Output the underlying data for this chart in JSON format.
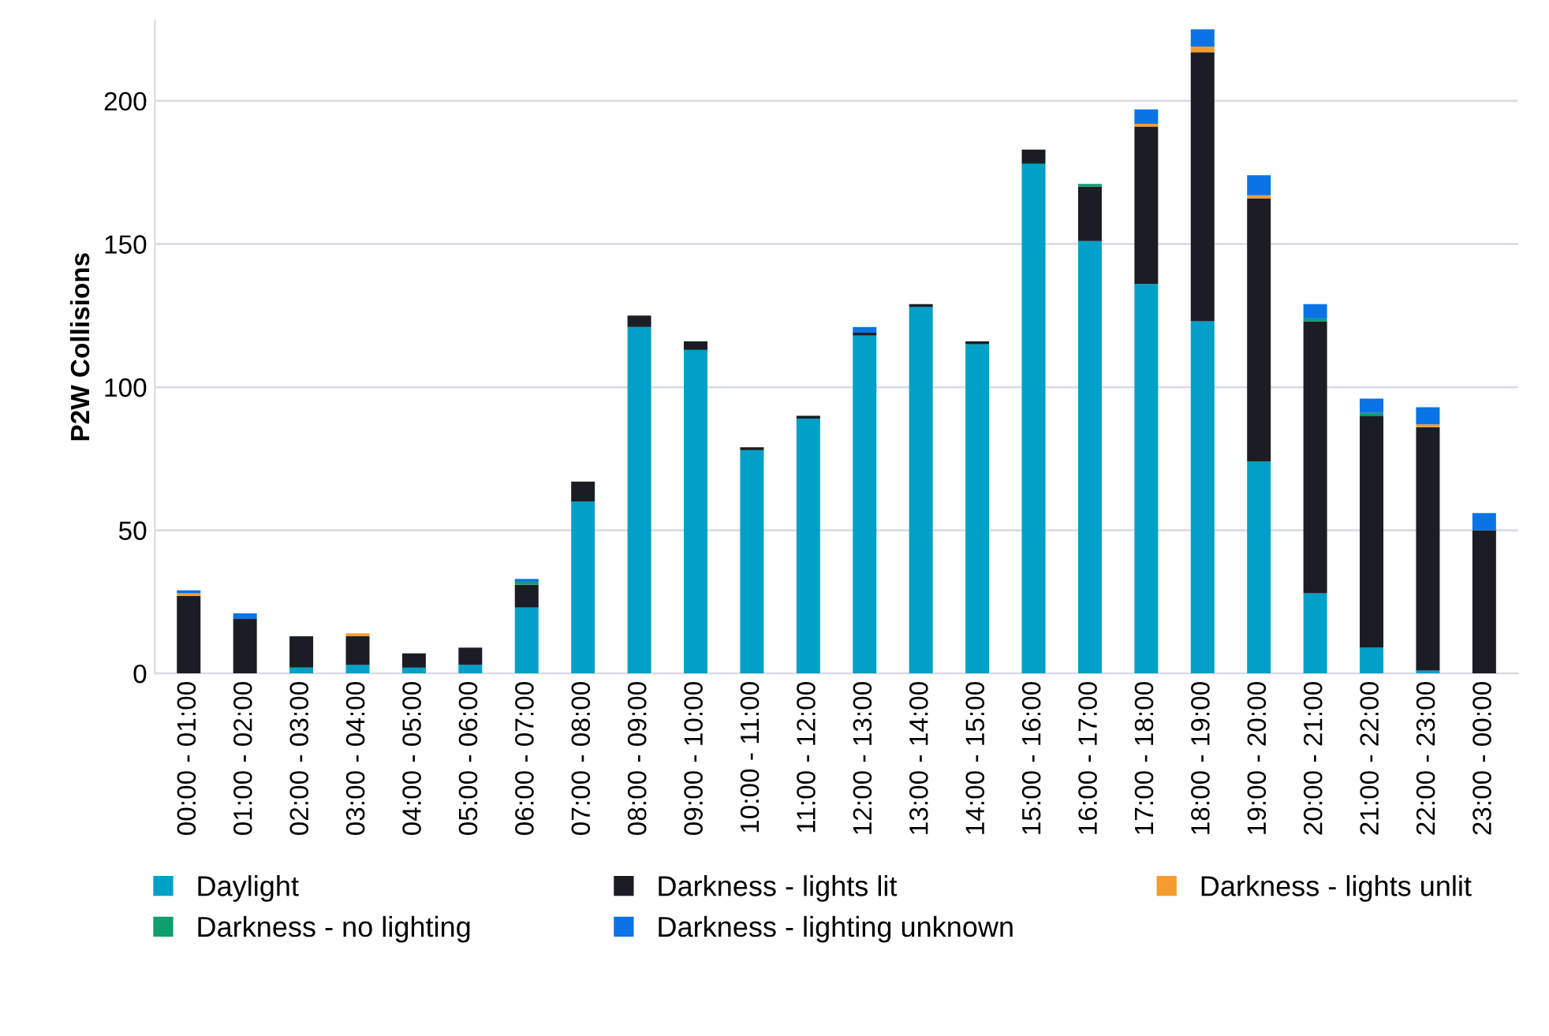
{
  "chart_data": {
    "type": "bar",
    "stacked": true,
    "ylabel": "P2W Collisions",
    "categories": [
      "00:00 - 01:00",
      "01:00 - 02:00",
      "02:00 - 03:00",
      "03:00 - 04:00",
      "04:00 - 05:00",
      "05:00 - 06:00",
      "06:00 - 07:00",
      "07:00 - 08:00",
      "08:00 - 09:00",
      "09:00 - 10:00",
      "10:00 - 11:00",
      "11:00 - 12:00",
      "12:00 - 13:00",
      "13:00 - 14:00",
      "14:00 - 15:00",
      "15:00 - 16:00",
      "16:00 - 17:00",
      "17:00 - 18:00",
      "18:00 - 19:00",
      "19:00 - 20:00",
      "20:00 - 21:00",
      "21:00 - 22:00",
      "22:00 - 23:00",
      "23:00 - 00:00"
    ],
    "series": [
      {
        "name": "Daylight",
        "color": "#00a0c8",
        "values": [
          0,
          0,
          2,
          3,
          2,
          3,
          23,
          60,
          121,
          113,
          78,
          89,
          118,
          128,
          115,
          178,
          151,
          136,
          123,
          74,
          28,
          9,
          1,
          0
        ]
      },
      {
        "name": "Darkness - lights lit",
        "color": "#1a1e24",
        "values": [
          27,
          19,
          11,
          10,
          5,
          6,
          8,
          7,
          4,
          3,
          1,
          1,
          1,
          1,
          1,
          5,
          19,
          55,
          94,
          92,
          95,
          81,
          85,
          50
        ]
      },
      {
        "name": "Darkness - lights unlit",
        "color": "#f39c2f",
        "values": [
          1,
          0,
          0,
          1,
          0,
          0,
          0,
          0,
          0,
          0,
          0,
          0,
          0,
          0,
          0,
          0,
          0,
          1,
          2,
          1,
          0,
          0,
          1,
          0
        ]
      },
      {
        "name": "Darkness - no lighting",
        "color": "#0f9e6e",
        "values": [
          0,
          0,
          0,
          0,
          0,
          0,
          1,
          0,
          0,
          0,
          0,
          0,
          0,
          0,
          0,
          0,
          1,
          0,
          0,
          0,
          1,
          1,
          0,
          0
        ]
      },
      {
        "name": "Darkness - lighting unknown",
        "color": "#0a73e6",
        "values": [
          1,
          2,
          0,
          0,
          0,
          0,
          1,
          0,
          0,
          0,
          0,
          0,
          2,
          0,
          0,
          0,
          0,
          5,
          6,
          7,
          5,
          5,
          6,
          6
        ]
      }
    ],
    "ylim": [
      0,
      228
    ],
    "yticks": [
      0,
      50,
      100,
      150,
      200
    ],
    "grid": "y",
    "legend": "bottom"
  }
}
